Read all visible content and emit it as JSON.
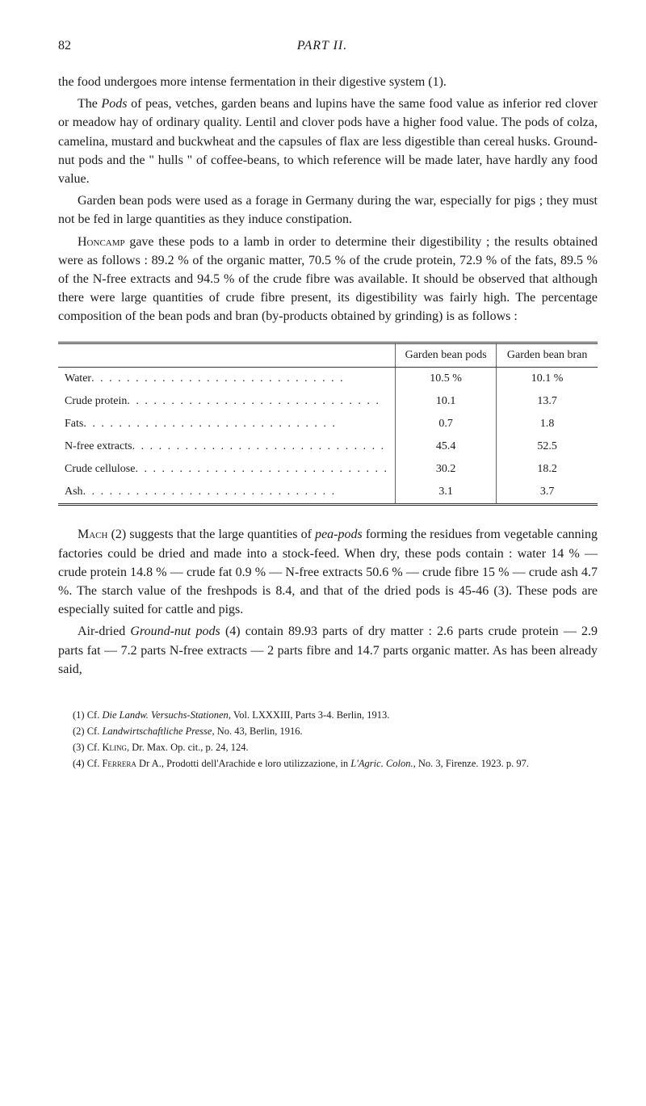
{
  "header": {
    "page_number": "82",
    "part_title": "PART II."
  },
  "paragraphs": {
    "p1": "the food undergoes more intense fermentation in their digestive system (1).",
    "p2_pre": "The ",
    "p2_pods": "Pods",
    "p2_rest": " of peas, vetches, garden beans and lupins have the same food value as inferior red clover or meadow hay of ordinary quality. Lentil and clover pods have a higher food value. The pods of colza, camelina, mustard and buckwheat and the capsules of flax are less digestible than cereal husks. Ground-nut pods and the \" hulls \" of coffee-beans, to which reference will be made later, have hardly any food value.",
    "p3": "Garden bean pods were used as a forage in Germany during the war, especially for pigs ; they must not be fed in large quantities as they induce constipation.",
    "p4_name": "Honcamp",
    "p4_rest": " gave these pods to a lamb in order to determine their digestibility ; the results obtained were as follows : 89.2 % of the organic matter, 70.5 % of the crude protein, 72.9 % of the fats, 89.5 % of the N-free extracts and 94.5 % of the crude fibre was available. It should be observed that although there were large quantities of crude fibre present, its digestibility was fairly high. The percentage composition of the bean pods and bran (by-products obtained by grinding) is as follows :",
    "p5_name": "Mach",
    "p5_num": " (2) suggests that the large quantities of ",
    "p5_it": "pea-pods",
    "p5_rest": " forming the residues from vegetable canning factories could be dried and made into a stock-feed. When dry, these pods contain : water 14 % — crude protein 14.8 % — crude fat 0.9 % — N-free extracts 50.6 % — crude fibre 15 % — crude ash 4.7 %. The starch value of the freshpods is 8.4, and that of the dried pods is 45-46 (3). These pods are especially suited for cattle and pigs.",
    "p6_pre": "Air-dried ",
    "p6_it": "Ground-nut pods",
    "p6_rest": " (4) contain 89.93 parts of dry matter : 2.6 parts crude protein — 2.9 parts fat — 7.2 parts N-free extracts — 2 parts fibre and 14.7 parts organic matter. As has been already said,"
  },
  "table": {
    "col_headers": [
      "Garden bean pods",
      "Garden bean bran"
    ],
    "rows": [
      {
        "label": "Water",
        "c1": "10.5 %",
        "c2": "10.1 %"
      },
      {
        "label": "Crude protein",
        "c1": "10.1",
        "c2": "13.7"
      },
      {
        "label": "Fats",
        "c1": "0.7",
        "c2": "1.8"
      },
      {
        "label": "N-free extracts",
        "c1": "45.4",
        "c2": "52.5"
      },
      {
        "label": "Crude cellulose",
        "c1": "30.2",
        "c2": "18.2"
      },
      {
        "label": "Ash",
        "c1": "3.1",
        "c2": "3.7"
      }
    ]
  },
  "footnotes": {
    "f1_pre": "(1) Cf. ",
    "f1_it": "Die Landw. Versuchs-Stationen",
    "f1_rest": ", Vol. LXXXIII, Parts 3-4. Berlin, 1913.",
    "f2_pre": "(2) Cf. ",
    "f2_it": "Landwirtschaftliche Presse",
    "f2_rest": ", No. 43, Berlin, 1916.",
    "f3_pre": "(3) Cf. ",
    "f3_sc": "Kling",
    "f3_rest": ", Dr. Max. Op. cit., p. 24, 124.",
    "f4_pre": "(4) Cf. ",
    "f4_sc": "Ferrera",
    "f4_mid": " Dr A., Prodotti dell'Arachide e loro utilizzazione, in ",
    "f4_it": "L'Agric. Colon.",
    "f4_rest": ", No. 3, Firenze. 1923. p. 97."
  }
}
